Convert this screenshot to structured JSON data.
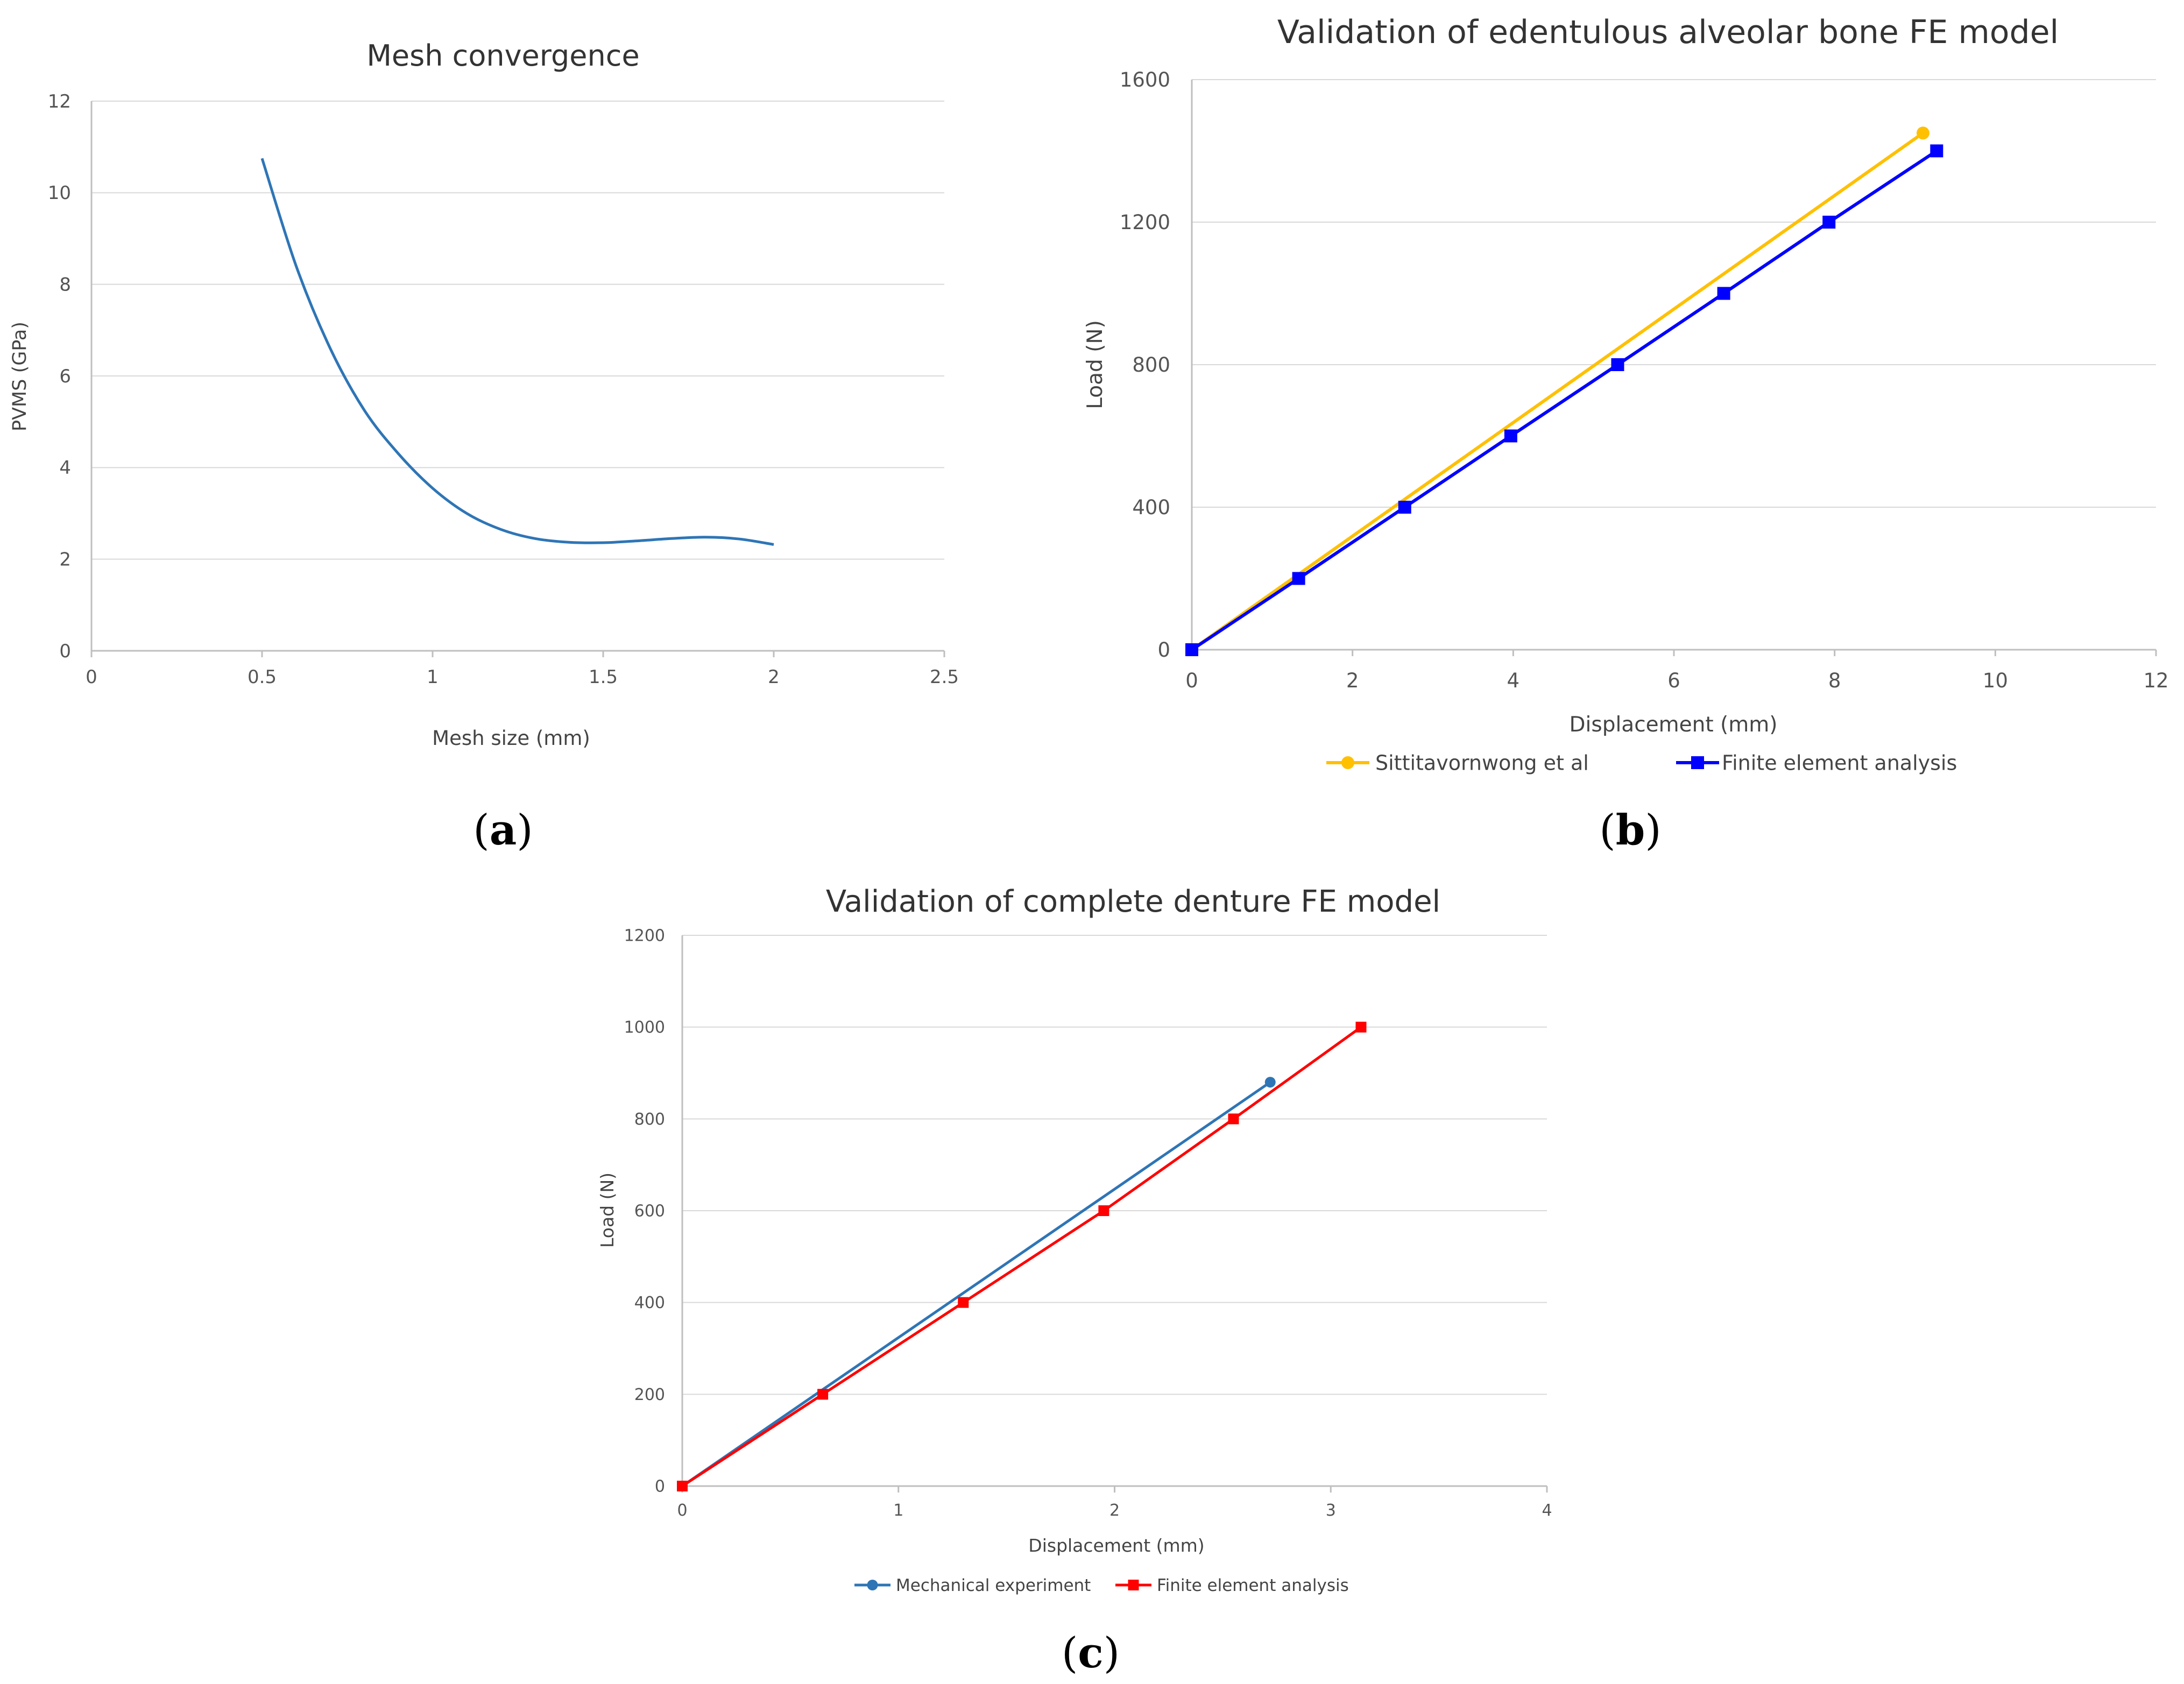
{
  "chart_data": [
    {
      "id": "a",
      "type": "line",
      "panel_label": "a",
      "title": "Mesh convergence",
      "xlabel": "Mesh size (mm)",
      "ylabel": "PVMS (GPa)",
      "xlim": [
        0,
        2.5
      ],
      "ylim": [
        0,
        12
      ],
      "xticks": [
        0,
        0.5,
        1,
        1.5,
        2,
        2.5
      ],
      "xtick_labels": [
        "0",
        "0.5",
        "1",
        "1.5",
        "2",
        "2.5"
      ],
      "yticks": [
        0,
        2,
        4,
        6,
        8,
        10,
        12
      ],
      "ytick_labels": [
        "0",
        "2",
        "4",
        "6",
        "8",
        "10",
        "12"
      ],
      "grid": "horizontal",
      "legend": "none",
      "series": [
        {
          "name": "PVMS",
          "color": "#2E75B6",
          "marker": "none",
          "smooth": true,
          "x": [
            0.5,
            0.6,
            0.7,
            0.8,
            0.9,
            1.0,
            1.1,
            1.2,
            1.3,
            1.4,
            1.5,
            1.6,
            1.7,
            1.8,
            1.9,
            2.0
          ],
          "y": [
            10.75,
            8.4,
            6.6,
            5.25,
            4.3,
            3.55,
            3.0,
            2.65,
            2.45,
            2.37,
            2.36,
            2.4,
            2.45,
            2.48,
            2.44,
            2.32
          ]
        }
      ]
    },
    {
      "id": "b",
      "type": "line",
      "panel_label": "b",
      "title": "Validation of edentulous alveolar bone FE model",
      "xlabel": "Displacement (mm)",
      "ylabel": "Load (N)",
      "xlim": [
        0,
        12
      ],
      "ylim": [
        0,
        1600
      ],
      "xticks": [
        0,
        2,
        4,
        6,
        8,
        10,
        12
      ],
      "xtick_labels": [
        "0",
        "2",
        "4",
        "6",
        "8",
        "10",
        "12"
      ],
      "yticks": [
        0,
        400,
        800,
        1200,
        1600
      ],
      "ytick_labels": [
        "0",
        "400",
        "800",
        "1200",
        "1600"
      ],
      "grid": "horizontal",
      "legend": "bottom",
      "series": [
        {
          "name": "Sittitavornwong et al",
          "color": "#FFC000",
          "marker": "circle",
          "marker_points": "ends",
          "x": [
            0,
            9.1
          ],
          "y": [
            0,
            1450
          ]
        },
        {
          "name": "Finite element analysis",
          "color": "#0000FF",
          "marker": "square",
          "marker_points": "all",
          "x": [
            0,
            1.33,
            2.65,
            3.97,
            5.3,
            6.62,
            7.93,
            9.27
          ],
          "y": [
            0,
            200,
            400,
            600,
            800,
            1000,
            1200,
            1400
          ]
        }
      ]
    },
    {
      "id": "c",
      "type": "line",
      "panel_label": "c",
      "title": "Validation of complete denture FE model",
      "xlabel": "Displacement (mm)",
      "ylabel": "Load (N)",
      "xlim": [
        0,
        4
      ],
      "ylim": [
        0,
        1200
      ],
      "xticks": [
        0,
        1,
        2,
        3,
        4
      ],
      "xtick_labels": [
        "0",
        "1",
        "2",
        "3",
        "4"
      ],
      "yticks": [
        0,
        200,
        400,
        600,
        800,
        1000,
        1200
      ],
      "ytick_labels": [
        "0",
        "200",
        "400",
        "600",
        "800",
        "1000",
        "1200"
      ],
      "grid": "horizontal",
      "legend": "bottom",
      "series": [
        {
          "name": "Mechanical experiment",
          "color": "#2E75B6",
          "marker": "circle",
          "marker_points": "ends",
          "x": [
            0,
            2.72
          ],
          "y": [
            0,
            880
          ]
        },
        {
          "name": "Finite element analysis",
          "color": "#FF0000",
          "marker": "square",
          "marker_points": "all",
          "x": [
            0,
            0.65,
            1.3,
            1.95,
            2.55,
            3.14
          ],
          "y": [
            0,
            200,
            400,
            600,
            800,
            1000
          ]
        }
      ]
    }
  ]
}
